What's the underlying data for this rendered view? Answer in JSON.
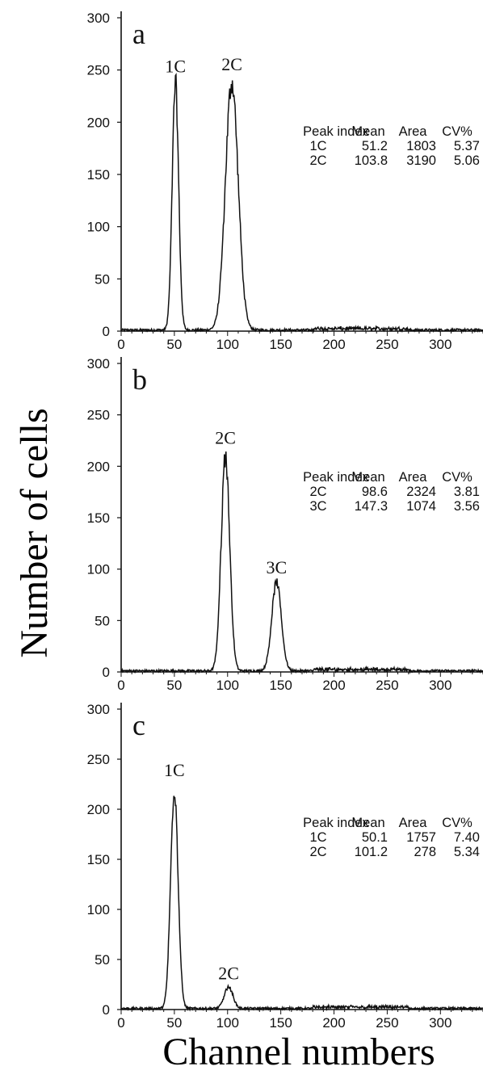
{
  "figure": {
    "ylabel": "Number of cells",
    "xlabel": "Channel numbers"
  },
  "chart_data": [
    {
      "type": "line",
      "panel_label": "a",
      "xlim": [
        0,
        340
      ],
      "ylim": [
        0,
        300
      ],
      "x_ticks": [
        0,
        50,
        100,
        150,
        200,
        250,
        300
      ],
      "y_ticks": [
        0,
        50,
        100,
        150,
        200,
        250,
        300
      ],
      "peaks": [
        {
          "label": "1C",
          "x": 51,
          "y": 240,
          "sigma": 3.0
        },
        {
          "label": "2C",
          "x": 104,
          "y": 242,
          "sigma": 6.0
        }
      ],
      "table": {
        "headers": [
          "Peak index",
          "Mean",
          "Area",
          "CV%"
        ],
        "rows": [
          [
            "1C",
            "51.2",
            "1803",
            "5.37"
          ],
          [
            "2C",
            "103.8",
            "3190",
            "5.06"
          ]
        ]
      }
    },
    {
      "type": "line",
      "panel_label": "b",
      "xlim": [
        0,
        340
      ],
      "ylim": [
        0,
        300
      ],
      "x_ticks": [
        0,
        50,
        100,
        150,
        200,
        250,
        300
      ],
      "y_ticks": [
        0,
        50,
        100,
        150,
        200,
        250,
        300
      ],
      "peaks": [
        {
          "label": "2C",
          "x": 98,
          "y": 214,
          "sigma": 4.0
        },
        {
          "label": "3C",
          "x": 146,
          "y": 88,
          "sigma": 4.5
        }
      ],
      "table": {
        "headers": [
          "Peak index",
          "Mean",
          "Area",
          "CV%"
        ],
        "rows": [
          [
            "2C",
            "98.6",
            "2324",
            "3.81"
          ],
          [
            "3C",
            "147.3",
            "1074",
            "3.56"
          ]
        ]
      }
    },
    {
      "type": "line",
      "panel_label": "c",
      "xlim": [
        0,
        340
      ],
      "ylim": [
        0,
        300
      ],
      "x_ticks": [
        0,
        50,
        100,
        150,
        200,
        250,
        300
      ],
      "y_ticks": [
        0,
        50,
        100,
        150,
        200,
        250,
        300
      ],
      "peaks": [
        {
          "label": "1C",
          "x": 50,
          "y": 225,
          "sigma": 3.5
        },
        {
          "label": "2C",
          "x": 101,
          "y": 22,
          "sigma": 4.0
        }
      ],
      "table": {
        "headers": [
          "Peak index",
          "Mean",
          "Area",
          "CV%"
        ],
        "rows": [
          [
            "1C",
            "50.1",
            "1757",
            "7.40"
          ],
          [
            "2C",
            "101.2",
            "278",
            "5.34"
          ]
        ]
      }
    }
  ]
}
